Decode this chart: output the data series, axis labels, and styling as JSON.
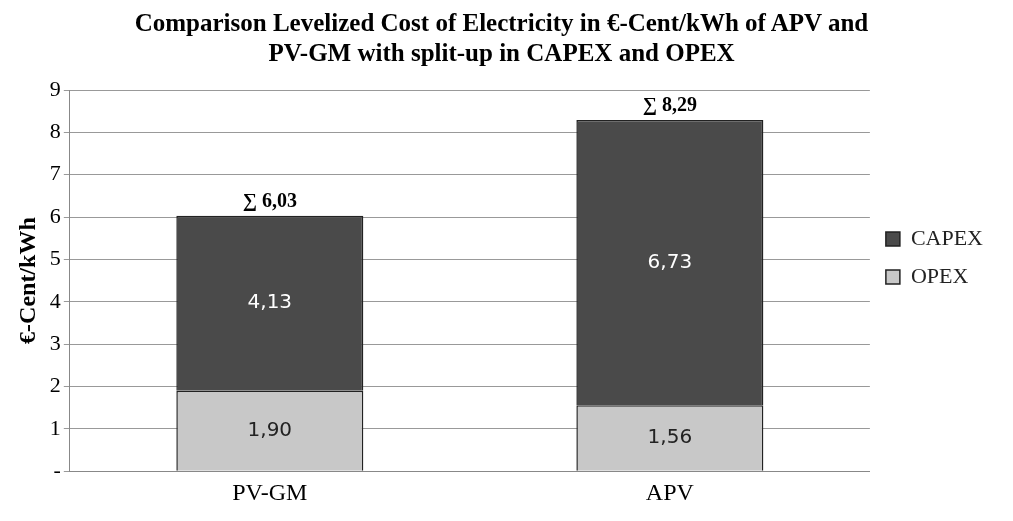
{
  "chart_data": {
    "type": "bar",
    "title": "Comparison Levelized Cost of Electricity in €-Cent/kWh of APV and PV-GM with split-up in CAPEX and OPEX",
    "ylabel": "€-Cent/kWh",
    "categories": [
      "PV-GM",
      "APV"
    ],
    "stacked": true,
    "series": [
      {
        "name": "OPEX",
        "color": "#c8c8c8",
        "values": [
          1.9,
          1.56
        ],
        "value_labels": [
          "1,90",
          "1,56"
        ]
      },
      {
        "name": "CAPEX",
        "color": "#4a4a4a",
        "values": [
          4.13,
          6.73
        ],
        "value_labels": [
          "4,13",
          "6,73"
        ]
      }
    ],
    "totals": [
      "∑ 6,03",
      "∑ 8,29"
    ],
    "ylim": [
      0,
      9
    ],
    "yticks": [
      {
        "value": 0,
        "label": "-"
      },
      1,
      2,
      3,
      4,
      5,
      6,
      7,
      8,
      9
    ],
    "grid": "y",
    "legend": "right"
  }
}
